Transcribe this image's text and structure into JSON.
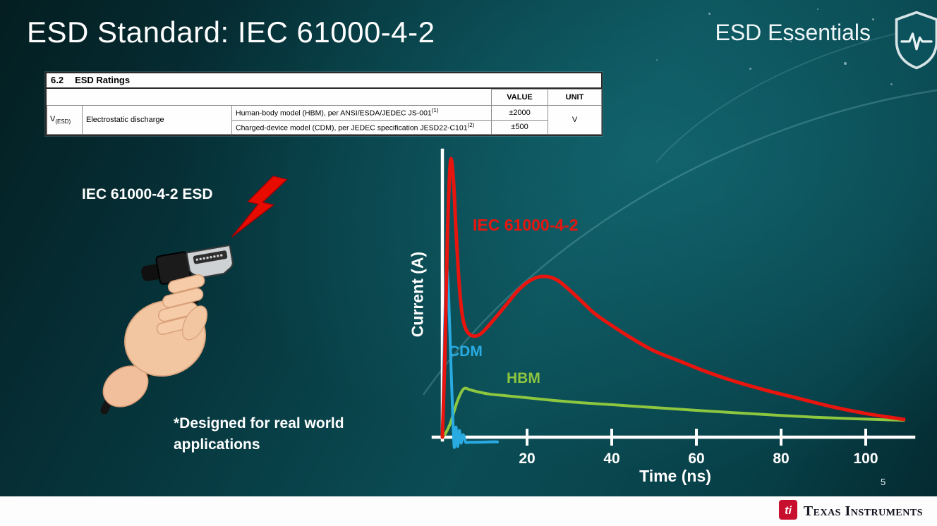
{
  "slide": {
    "title": "ESD Standard: IEC 61000-4-2",
    "series_label": "ESD Essentials",
    "page_number": "5"
  },
  "ratings_table": {
    "section": "6.2",
    "section_title": "ESD Ratings",
    "col_value": "VALUE",
    "col_unit": "UNIT",
    "param_symbol": "V",
    "param_symbol_sub": "(ESD)",
    "param_name": "Electrostatic discharge",
    "rows": [
      {
        "desc": "Human-body model (HBM), per ANSI/ESDA/JEDEC JS-001",
        "desc_sup": "(1)",
        "value": "±2000"
      },
      {
        "desc": "Charged-device model (CDM), per JEDEC specification JESD22-C101",
        "desc_sup": "(2)",
        "value": "±500"
      }
    ],
    "unit": "V"
  },
  "illustration": {
    "label": "IEC 61000-4-2 ESD",
    "note_line1": "*Designed for real world",
    "note_line2": "applications"
  },
  "chart_data": {
    "type": "line",
    "title": "",
    "xlabel": "Time (ns)",
    "ylabel": "Current (A)",
    "x_ticks": [
      20,
      40,
      60,
      80,
      100
    ],
    "xlim": [
      0,
      110
    ],
    "ylim": [
      -1,
      17
    ],
    "grid": false,
    "legend_position": "inline-labels",
    "series": [
      {
        "name": "IEC 61000-4-2",
        "color": "#e8150f",
        "points": [
          [
            0,
            0
          ],
          [
            0.6,
            5
          ],
          [
            1.2,
            12
          ],
          [
            1.9,
            16.3
          ],
          [
            2.6,
            15.2
          ],
          [
            3.2,
            12.3
          ],
          [
            3.9,
            9.3
          ],
          [
            4.6,
            7.4
          ],
          [
            5.5,
            6.4
          ],
          [
            7,
            6.0
          ],
          [
            9,
            6.1
          ],
          [
            12,
            6.9
          ],
          [
            15,
            7.8
          ],
          [
            18,
            8.7
          ],
          [
            21,
            9.3
          ],
          [
            24,
            9.5
          ],
          [
            27,
            9.3
          ],
          [
            30,
            8.7
          ],
          [
            33,
            8.0
          ],
          [
            36,
            7.3
          ],
          [
            40,
            6.6
          ],
          [
            45,
            5.8
          ],
          [
            50,
            5.1
          ],
          [
            56,
            4.5
          ],
          [
            62,
            3.9
          ],
          [
            69,
            3.3
          ],
          [
            76,
            2.8
          ],
          [
            84,
            2.3
          ],
          [
            92,
            1.8
          ],
          [
            100,
            1.4
          ],
          [
            105,
            1.2
          ],
          [
            109,
            1.05
          ]
        ]
      },
      {
        "name": "CDM",
        "color": "#29abe2",
        "points": [
          [
            0,
            0
          ],
          [
            0.35,
            4.5
          ],
          [
            0.8,
            9.2
          ],
          [
            1.1,
            9.9
          ],
          [
            1.5,
            8.2
          ],
          [
            1.9,
            5.2
          ],
          [
            2.4,
            1.6
          ],
          [
            2.8,
            -0.6
          ],
          [
            3.2,
            0.6
          ],
          [
            3.6,
            -0.55
          ],
          [
            4.0,
            0.4
          ],
          [
            4.4,
            -0.35
          ],
          [
            4.9,
            0.15
          ],
          [
            5.5,
            -0.3
          ],
          [
            6.2,
            -0.3
          ],
          [
            8,
            -0.3
          ],
          [
            11,
            -0.28
          ],
          [
            13,
            -0.28
          ]
        ]
      },
      {
        "name": "HBM",
        "color": "#8dc63f",
        "points": [
          [
            0,
            0
          ],
          [
            0.8,
            0.25
          ],
          [
            2,
            0.9
          ],
          [
            3.5,
            2.1
          ],
          [
            5,
            2.85
          ],
          [
            6.5,
            2.8
          ],
          [
            8,
            2.7
          ],
          [
            11,
            2.55
          ],
          [
            15,
            2.45
          ],
          [
            20,
            2.33
          ],
          [
            26,
            2.18
          ],
          [
            33,
            2.03
          ],
          [
            40,
            1.92
          ],
          [
            48,
            1.78
          ],
          [
            56,
            1.65
          ],
          [
            64,
            1.52
          ],
          [
            72,
            1.4
          ],
          [
            80,
            1.28
          ],
          [
            88,
            1.18
          ],
          [
            96,
            1.1
          ],
          [
            103,
            1.04
          ],
          [
            109,
            1.0
          ]
        ]
      }
    ],
    "labels": [
      {
        "text": "IEC 61000-4-2",
        "color": "#e8150f"
      },
      {
        "text": "CDM",
        "color": "#29abe2"
      },
      {
        "text": "HBM",
        "color": "#8dc63f"
      }
    ]
  },
  "footer": {
    "brand": "Texas Instruments"
  }
}
